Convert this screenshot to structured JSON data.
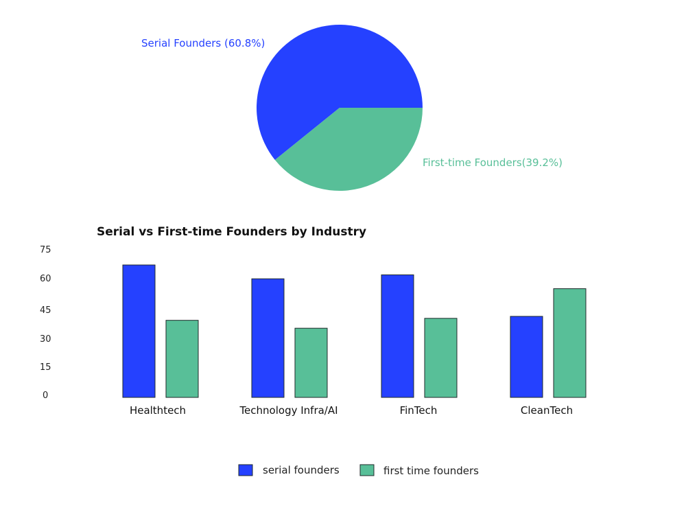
{
  "colors": {
    "serial": "#2541FF",
    "first_time": "#58BF98",
    "bar_stroke": "#1f2a2a",
    "text": "#111111"
  },
  "chart_data": [
    {
      "type": "pie",
      "slices": [
        {
          "label": "Serial Founders (60.8%)",
          "value": 60.8,
          "color": "#2541FF"
        },
        {
          "label": "First-time Founders(39.2%)",
          "value": 39.2,
          "color": "#58BF98"
        }
      ]
    },
    {
      "type": "bar",
      "title": "Serial vs First-time Founders by Industry",
      "categories": [
        "Healthtech",
        "Technology Infra/AI",
        "FinTech",
        "CleanTech"
      ],
      "series": [
        {
          "name": "serial founders",
          "values": [
            67,
            60,
            62,
            41
          ],
          "color": "#2541FF"
        },
        {
          "name": "first time founders",
          "values": [
            39,
            35,
            40,
            55
          ],
          "color": "#58BF98"
        }
      ],
      "yticks": [
        "75",
        "60",
        "45",
        "30",
        "15",
        "0"
      ],
      "ylim": [
        0,
        75
      ],
      "legend_position": "bottom"
    }
  ]
}
